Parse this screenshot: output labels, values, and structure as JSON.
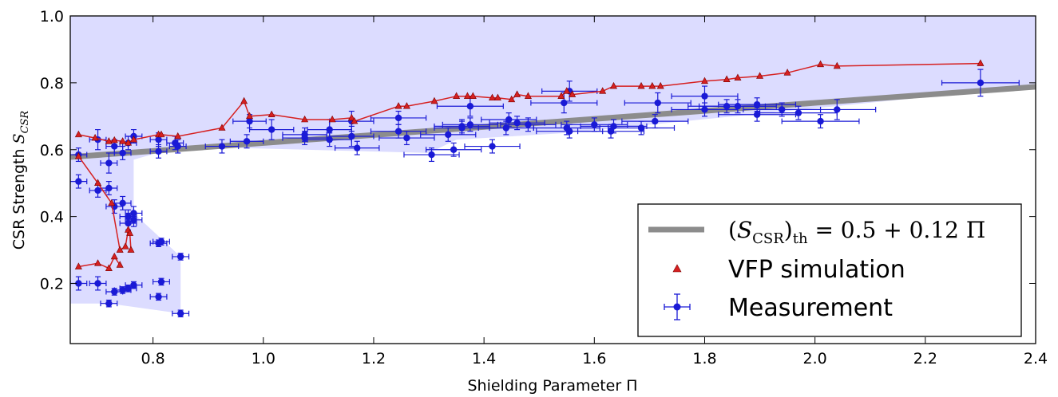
{
  "chart_data": {
    "type": "scatter",
    "xlabel": "Shielding Parameter Π",
    "ylabel_main": "CSR Strength",
    "ylabel_symbol": "S",
    "ylabel_sub": "CSR",
    "xlim": [
      0.65,
      2.4
    ],
    "ylim": [
      0.02,
      1.0
    ],
    "x_ticks": [
      0.8,
      1.0,
      1.2,
      1.4,
      1.6,
      1.8,
      2.0,
      2.2,
      2.4
    ],
    "x_tick_labels": [
      "0.8",
      "1.0",
      "1.2",
      "1.4",
      "1.6",
      "1.8",
      "2.0",
      "2.2",
      "2.4"
    ],
    "y_ticks": [
      0.2,
      0.4,
      0.6,
      0.8,
      1.0
    ],
    "y_tick_labels": [
      "0.2",
      "0.4",
      "0.6",
      "0.8",
      "1.0"
    ],
    "grid": false,
    "legend_position": "bottom-right",
    "colors": {
      "threshold": "#8c8c8c",
      "simulation": "#d62020",
      "measurement": "#1a1ad6",
      "shade": "#dcdcff"
    },
    "threshold": {
      "legend_label": "(S_CSR)_th = 0.5 + 0.12 Π",
      "legend_parts": {
        "open": "(",
        "symbol": "S",
        "sub": "CSR",
        "close": ")",
        "sub2": "th",
        "rest": " = 0.5 + 0.12 Π"
      },
      "intercept": 0.5,
      "slope": 0.12
    },
    "series": [
      {
        "name": "VFP simulation",
        "marker": "triangle",
        "upper_branch": [
          [
            0.665,
            0.645
          ],
          [
            0.695,
            0.635
          ],
          [
            0.72,
            0.625
          ],
          [
            0.73,
            0.628
          ],
          [
            0.745,
            0.625
          ],
          [
            0.755,
            0.62
          ],
          [
            0.765,
            0.63
          ],
          [
            0.81,
            0.645
          ],
          [
            0.815,
            0.645
          ],
          [
            0.845,
            0.64
          ],
          [
            0.925,
            0.665
          ],
          [
            0.965,
            0.745
          ],
          [
            0.975,
            0.7
          ],
          [
            1.015,
            0.705
          ],
          [
            1.075,
            0.69
          ],
          [
            1.125,
            0.69
          ],
          [
            1.16,
            0.695
          ],
          [
            1.165,
            0.685
          ],
          [
            1.245,
            0.73
          ],
          [
            1.26,
            0.73
          ],
          [
            1.31,
            0.745
          ],
          [
            1.35,
            0.76
          ],
          [
            1.37,
            0.76
          ],
          [
            1.38,
            0.76
          ],
          [
            1.415,
            0.755
          ],
          [
            1.425,
            0.755
          ],
          [
            1.45,
            0.75
          ],
          [
            1.46,
            0.765
          ],
          [
            1.48,
            0.76
          ],
          [
            1.54,
            0.76
          ],
          [
            1.55,
            0.775
          ],
          [
            1.56,
            0.765
          ],
          [
            1.615,
            0.775
          ],
          [
            1.635,
            0.79
          ],
          [
            1.685,
            0.79
          ],
          [
            1.705,
            0.79
          ],
          [
            1.72,
            0.79
          ],
          [
            1.8,
            0.805
          ],
          [
            1.84,
            0.81
          ],
          [
            1.86,
            0.815
          ],
          [
            1.9,
            0.82
          ],
          [
            1.95,
            0.83
          ],
          [
            2.01,
            0.855
          ],
          [
            2.04,
            0.85
          ],
          [
            2.3,
            0.858
          ]
        ],
        "middle_branch": [
          [
            0.665,
            0.58
          ],
          [
            0.7,
            0.5
          ],
          [
            0.725,
            0.44
          ],
          [
            0.74,
            0.3
          ],
          [
            0.75,
            0.31
          ],
          [
            0.755,
            0.36
          ],
          [
            0.758,
            0.35
          ],
          [
            0.76,
            0.3
          ]
        ],
        "lower_branch": [
          [
            0.665,
            0.25
          ],
          [
            0.7,
            0.26
          ],
          [
            0.72,
            0.245
          ],
          [
            0.73,
            0.28
          ],
          [
            0.74,
            0.255
          ]
        ]
      },
      {
        "name": "Measurement",
        "marker": "circle",
        "points": [
          [
            0.665,
            0.585,
            0.015,
            0.02
          ],
          [
            0.665,
            0.505,
            0.015,
            0.02
          ],
          [
            0.665,
            0.2,
            0.015,
            0.02
          ],
          [
            0.7,
            0.63,
            0.015,
            0.03
          ],
          [
            0.7,
            0.478,
            0.015,
            0.02
          ],
          [
            0.7,
            0.2,
            0.015,
            0.02
          ],
          [
            0.72,
            0.56,
            0.015,
            0.03
          ],
          [
            0.72,
            0.485,
            0.015,
            0.02
          ],
          [
            0.72,
            0.14,
            0.015,
            0.01
          ],
          [
            0.73,
            0.61,
            0.015,
            0.02
          ],
          [
            0.73,
            0.43,
            0.015,
            0.02
          ],
          [
            0.73,
            0.175,
            0.015,
            0.01
          ],
          [
            0.745,
            0.59,
            0.015,
            0.02
          ],
          [
            0.745,
            0.44,
            0.015,
            0.02
          ],
          [
            0.745,
            0.18,
            0.015,
            0.01
          ],
          [
            0.755,
            0.62,
            0.015,
            0.02
          ],
          [
            0.755,
            0.4,
            0.015,
            0.02
          ],
          [
            0.755,
            0.38,
            0.015,
            0.02
          ],
          [
            0.755,
            0.185,
            0.015,
            0.01
          ],
          [
            0.765,
            0.64,
            0.015,
            0.02
          ],
          [
            0.765,
            0.41,
            0.015,
            0.02
          ],
          [
            0.765,
            0.39,
            0.015,
            0.02
          ],
          [
            0.765,
            0.195,
            0.015,
            0.01
          ],
          [
            0.81,
            0.63,
            0.015,
            0.02
          ],
          [
            0.81,
            0.595,
            0.015,
            0.02
          ],
          [
            0.81,
            0.32,
            0.015,
            0.01
          ],
          [
            0.81,
            0.16,
            0.015,
            0.01
          ],
          [
            0.815,
            0.325,
            0.015,
            0.01
          ],
          [
            0.815,
            0.205,
            0.015,
            0.01
          ],
          [
            0.84,
            0.62,
            0.015,
            0.02
          ],
          [
            0.845,
            0.61,
            0.015,
            0.02
          ],
          [
            0.85,
            0.28,
            0.015,
            0.01
          ],
          [
            0.85,
            0.11,
            0.015,
            0.01
          ],
          [
            0.925,
            0.61,
            0.03,
            0.02
          ],
          [
            0.97,
            0.625,
            0.03,
            0.02
          ],
          [
            0.975,
            0.685,
            0.03,
            0.02
          ],
          [
            1.015,
            0.66,
            0.04,
            0.03
          ],
          [
            1.075,
            0.635,
            0.04,
            0.02
          ],
          [
            1.075,
            0.645,
            0.04,
            0.02
          ],
          [
            1.12,
            0.66,
            0.04,
            0.03
          ],
          [
            1.12,
            0.63,
            0.04,
            0.02
          ],
          [
            1.16,
            0.685,
            0.04,
            0.03
          ],
          [
            1.16,
            0.64,
            0.04,
            0.03
          ],
          [
            1.17,
            0.605,
            0.04,
            0.02
          ],
          [
            1.245,
            0.695,
            0.05,
            0.02
          ],
          [
            1.245,
            0.655,
            0.05,
            0.02
          ],
          [
            1.26,
            0.635,
            0.05,
            0.02
          ],
          [
            1.305,
            0.585,
            0.05,
            0.02
          ],
          [
            1.335,
            0.645,
            0.05,
            0.02
          ],
          [
            1.345,
            0.6,
            0.05,
            0.02
          ],
          [
            1.36,
            0.665,
            0.05,
            0.02
          ],
          [
            1.36,
            0.67,
            0.05,
            0.02
          ],
          [
            1.375,
            0.73,
            0.06,
            0.03
          ],
          [
            1.375,
            0.675,
            0.05,
            0.02
          ],
          [
            1.415,
            0.61,
            0.05,
            0.02
          ],
          [
            1.44,
            0.665,
            0.05,
            0.02
          ],
          [
            1.445,
            0.69,
            0.05,
            0.02
          ],
          [
            1.46,
            0.68,
            0.05,
            0.02
          ],
          [
            1.48,
            0.675,
            0.05,
            0.02
          ],
          [
            1.545,
            0.74,
            0.06,
            0.03
          ],
          [
            1.55,
            0.665,
            0.06,
            0.02
          ],
          [
            1.555,
            0.775,
            0.05,
            0.03
          ],
          [
            1.555,
            0.655,
            0.06,
            0.02
          ],
          [
            1.6,
            0.675,
            0.06,
            0.02
          ],
          [
            1.63,
            0.655,
            0.06,
            0.02
          ],
          [
            1.635,
            0.67,
            0.06,
            0.02
          ],
          [
            1.685,
            0.665,
            0.06,
            0.02
          ],
          [
            1.71,
            0.685,
            0.06,
            0.02
          ],
          [
            1.715,
            0.74,
            0.06,
            0.03
          ],
          [
            1.8,
            0.76,
            0.06,
            0.03
          ],
          [
            1.8,
            0.72,
            0.06,
            0.02
          ],
          [
            1.84,
            0.73,
            0.07,
            0.02
          ],
          [
            1.86,
            0.73,
            0.07,
            0.02
          ],
          [
            1.895,
            0.735,
            0.07,
            0.02
          ],
          [
            1.895,
            0.705,
            0.07,
            0.02
          ],
          [
            1.94,
            0.72,
            0.07,
            0.02
          ],
          [
            1.97,
            0.71,
            0.07,
            0.02
          ],
          [
            2.01,
            0.685,
            0.07,
            0.02
          ],
          [
            2.04,
            0.72,
            0.07,
            0.03
          ],
          [
            2.3,
            0.8,
            0.07,
            0.04
          ]
        ]
      }
    ],
    "shaded_region": [
      [
        0.65,
        1.0
      ],
      [
        2.4,
        1.0
      ],
      [
        2.4,
        0.79
      ],
      [
        1.55,
        0.65
      ],
      [
        1.35,
        0.63
      ],
      [
        1.3,
        0.59
      ],
      [
        0.85,
        0.61
      ],
      [
        0.765,
        0.57
      ],
      [
        0.765,
        0.41
      ],
      [
        0.85,
        0.28
      ],
      [
        0.85,
        0.11
      ],
      [
        0.72,
        0.14
      ],
      [
        0.65,
        0.14
      ]
    ]
  }
}
